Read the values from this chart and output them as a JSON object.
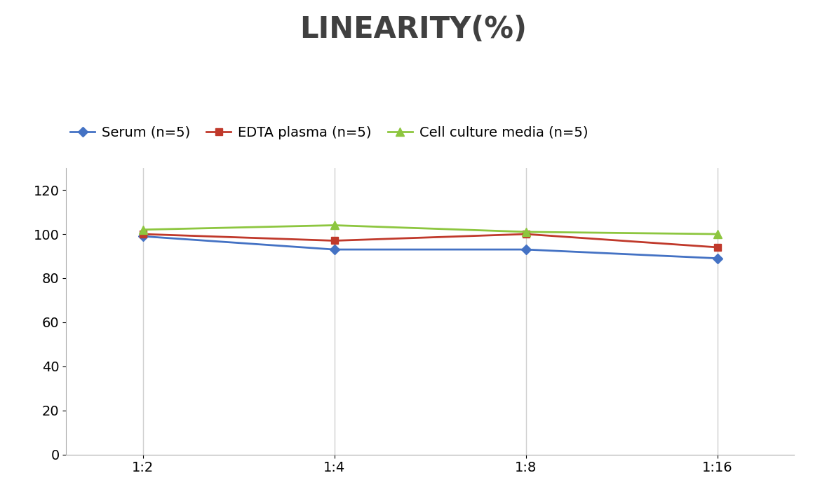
{
  "title": "LINEARITY(%)",
  "title_fontsize": 30,
  "title_fontweight": "bold",
  "title_color": "#404040",
  "x_labels": [
    "1:2",
    "1:4",
    "1:8",
    "1:16"
  ],
  "x_positions": [
    0,
    1,
    2,
    3
  ],
  "series": [
    {
      "label": "Serum (n=5)",
      "values": [
        99,
        93,
        93,
        89
      ],
      "color": "#4472C4",
      "marker": "D",
      "markersize": 7,
      "linewidth": 2
    },
    {
      "label": "EDTA plasma (n=5)",
      "values": [
        100,
        97,
        100,
        94
      ],
      "color": "#C0392B",
      "marker": "s",
      "markersize": 7,
      "linewidth": 2
    },
    {
      "label": "Cell culture media (n=5)",
      "values": [
        102,
        104,
        101,
        100
      ],
      "color": "#8DC63F",
      "marker": "^",
      "markersize": 8,
      "linewidth": 2
    }
  ],
  "ylim": [
    0,
    130
  ],
  "yticks": [
    0,
    20,
    40,
    60,
    80,
    100,
    120
  ],
  "ylabel": "",
  "xlabel": "",
  "background_color": "#ffffff",
  "grid_color": "#d0d0d0",
  "legend_fontsize": 14,
  "tick_fontsize": 14,
  "spine_color": "#aaaaaa"
}
